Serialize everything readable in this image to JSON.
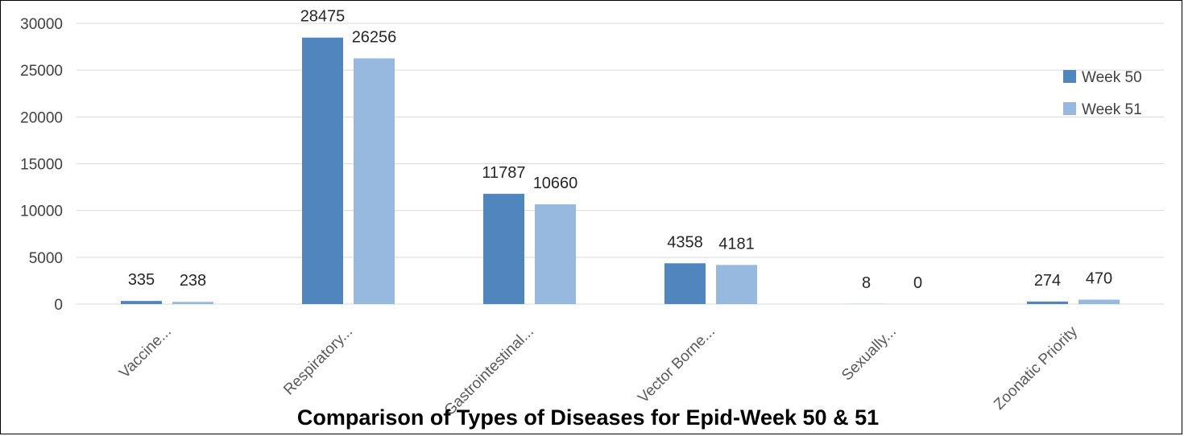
{
  "chart_data": {
    "type": "bar",
    "title": "Comparison of Types of Diseases for Epid-Week 50 & 51",
    "categories": [
      "Vaccine...",
      "Respiratory...",
      "Gastrointestinal...",
      "Vector Borne...",
      "Sexually...",
      "Zoonatic Priority"
    ],
    "series": [
      {
        "name": "Week 50",
        "values": [
          335,
          28475,
          11787,
          4358,
          8,
          274
        ],
        "color": "#4f86bd"
      },
      {
        "name": "Week 51",
        "values": [
          238,
          26256,
          10660,
          4181,
          0,
          470
        ],
        "color": "#98b9df"
      }
    ],
    "y_ticks": [
      "0",
      "5000",
      "10000",
      "15000",
      "20000",
      "25000",
      "30000"
    ],
    "ylim": [
      0,
      30000
    ],
    "grid": true,
    "legend_position": "top-right",
    "data_labels": true
  }
}
